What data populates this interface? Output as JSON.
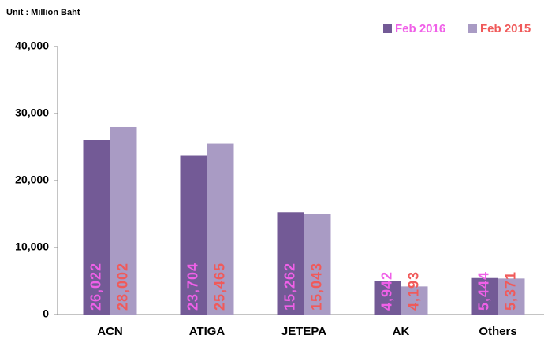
{
  "chart_data": {
    "type": "bar",
    "subtitle": "Unit : Million Baht",
    "categories": [
      "ACN",
      "ATIGA",
      "JETEPA",
      "AK",
      "Others"
    ],
    "series": [
      {
        "name": "Feb 2016",
        "color": "#735a96",
        "label_color": "#f060e8",
        "values": [
          26022,
          23704,
          15262,
          4942,
          5444
        ],
        "value_labels": [
          "26,022",
          "23,704",
          "15,262",
          "4,942",
          "5,444"
        ]
      },
      {
        "name": "Feb 2015",
        "color": "#a99bc4",
        "label_color": "#f05a5a",
        "values": [
          28002,
          25465,
          15043,
          4193,
          5371
        ],
        "value_labels": [
          "28,002",
          "25,465",
          "15,043",
          "4,193",
          "5,371"
        ]
      }
    ],
    "ylim": [
      0,
      40000
    ],
    "yticks": [
      0,
      {
        "value": 10000,
        "label": "10,000"
      },
      {
        "value": 20000,
        "label": "20,000"
      },
      {
        "value": 30000,
        "label": "30,000"
      },
      {
        "value": 40000,
        "label": "40,000"
      }
    ],
    "legend": "top-right"
  }
}
